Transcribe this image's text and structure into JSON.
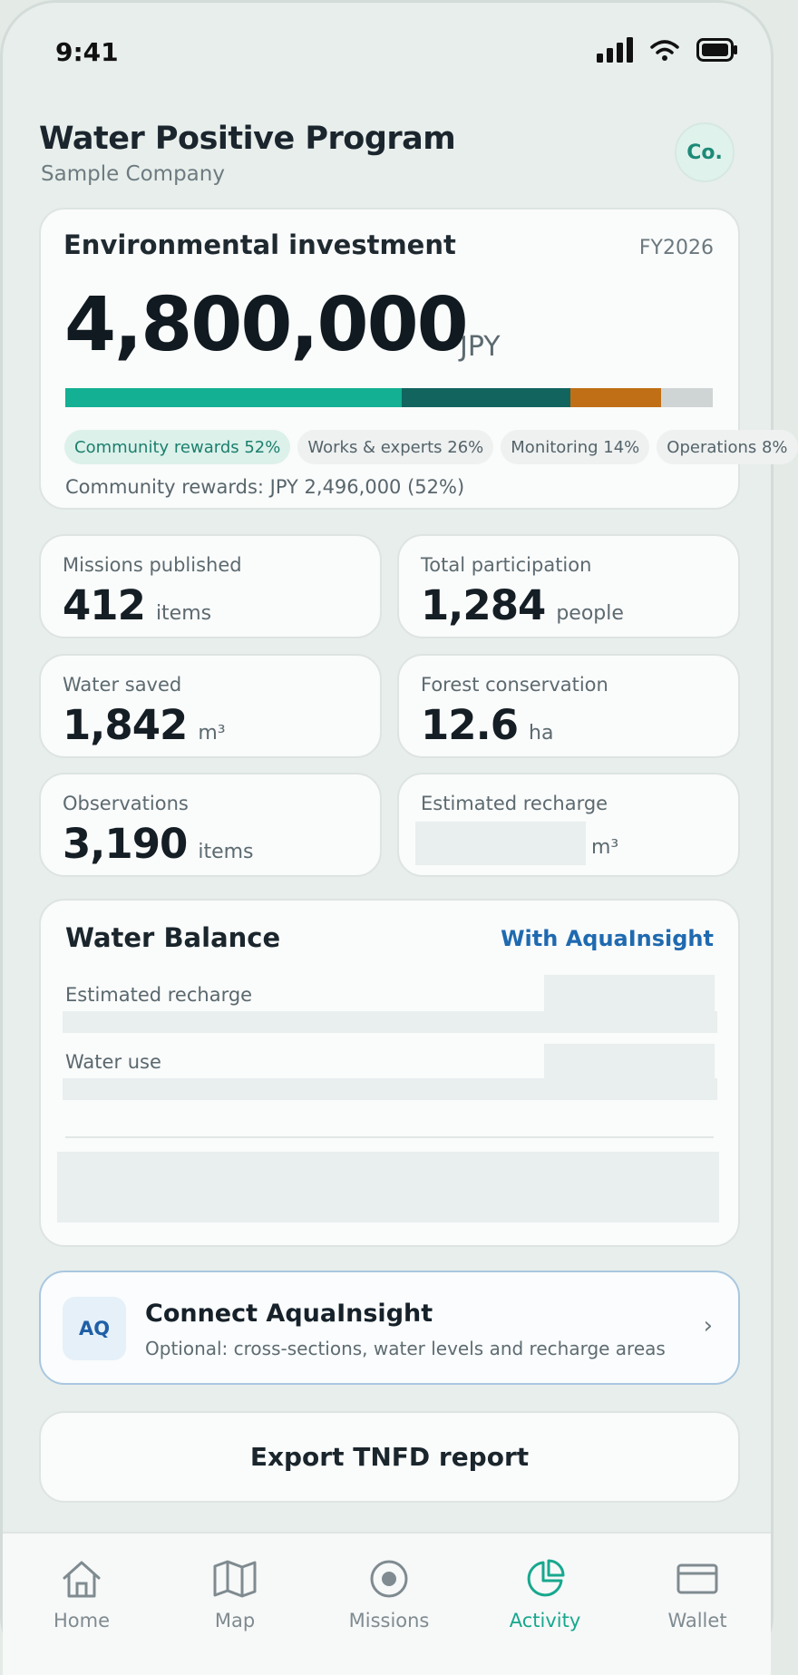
{
  "status": {
    "time": "9:41"
  },
  "header": {
    "title": "Water Positive Program",
    "subtitle": "Sample Company",
    "avatar": "Co."
  },
  "investment": {
    "title": "Environmental investment",
    "fiscal_year": "FY2026",
    "amount": "4,800,000",
    "unit": "JPY",
    "allocation": [
      {
        "label": "Community rewards 52%",
        "share": 52,
        "color": "#14b093"
      },
      {
        "label": "Works & experts 26%",
        "share": 26,
        "color": "#12655f"
      },
      {
        "label": "Monitoring 14%",
        "share": 14,
        "color": "#c06f16"
      },
      {
        "label": "Operations 8%",
        "share": 8,
        "color": "#cfd5d4"
      }
    ],
    "detail": "Community rewards: JPY 2,496,000 (52%)"
  },
  "stats": {
    "missions": {
      "label": "Missions published",
      "value": "412",
      "unit": "items"
    },
    "participation": {
      "label": "Total participation",
      "value": "1,284",
      "unit": "people"
    },
    "water_saved": {
      "label": "Water saved",
      "value": "1,842",
      "unit": "m³"
    },
    "forest": {
      "label": "Forest conservation",
      "value": "12.6",
      "unit": "ha"
    },
    "observations": {
      "label": "Observations",
      "value": "3,190",
      "unit": "items"
    },
    "recharge": {
      "label": "Estimated recharge",
      "value": "",
      "unit": "m³"
    }
  },
  "water_balance": {
    "title": "Water Balance",
    "link": "With AquaInsight",
    "rows": [
      "Estimated recharge",
      "Water use"
    ]
  },
  "connect": {
    "badge": "AQ",
    "title": "Connect AquaInsight",
    "subtitle": "Optional: cross-sections, water levels and recharge areas",
    "chevron": "›"
  },
  "export": {
    "label": "Export TNFD report"
  },
  "tabs": {
    "home": "Home",
    "map": "Map",
    "missions": "Missions",
    "activity": "Activity",
    "wallet": "Wallet",
    "active": "Activity"
  },
  "colors": {
    "accent": "#17a88e",
    "link": "#1f6ab0"
  }
}
